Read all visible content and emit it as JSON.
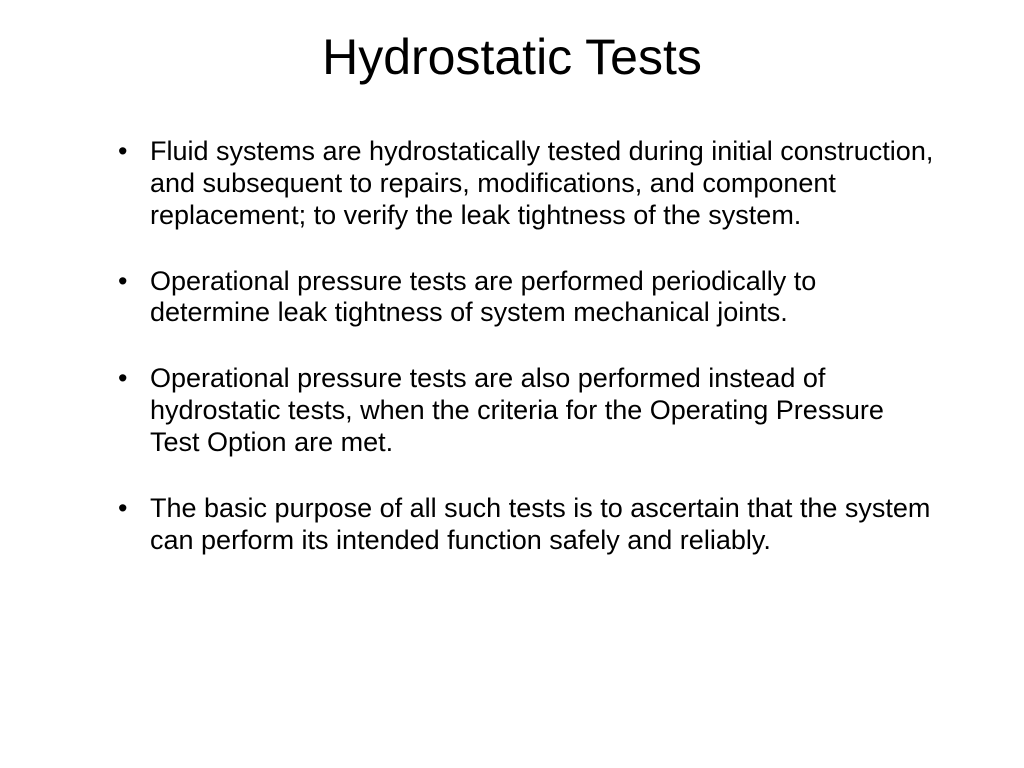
{
  "slide": {
    "title": "Hydrostatic Tests",
    "title_fontsize": 50,
    "body_fontsize": 27,
    "text_color": "#000000",
    "background_color": "#ffffff",
    "bullets": [
      "Fluid systems are hydrostatically tested during initial construction, and subsequent to repairs, modifications, and component replacement; to verify the leak tightness of the system.",
      "Operational pressure tests are performed periodically to determine leak tightness of system mechanical joints.",
      "Operational pressure tests are also performed instead of hydrostatic tests, when the criteria  for the Operating Pressure Test Option are met.",
      "The basic purpose of all such tests is to ascertain that the system can perform its intended function safely and reliably."
    ]
  }
}
